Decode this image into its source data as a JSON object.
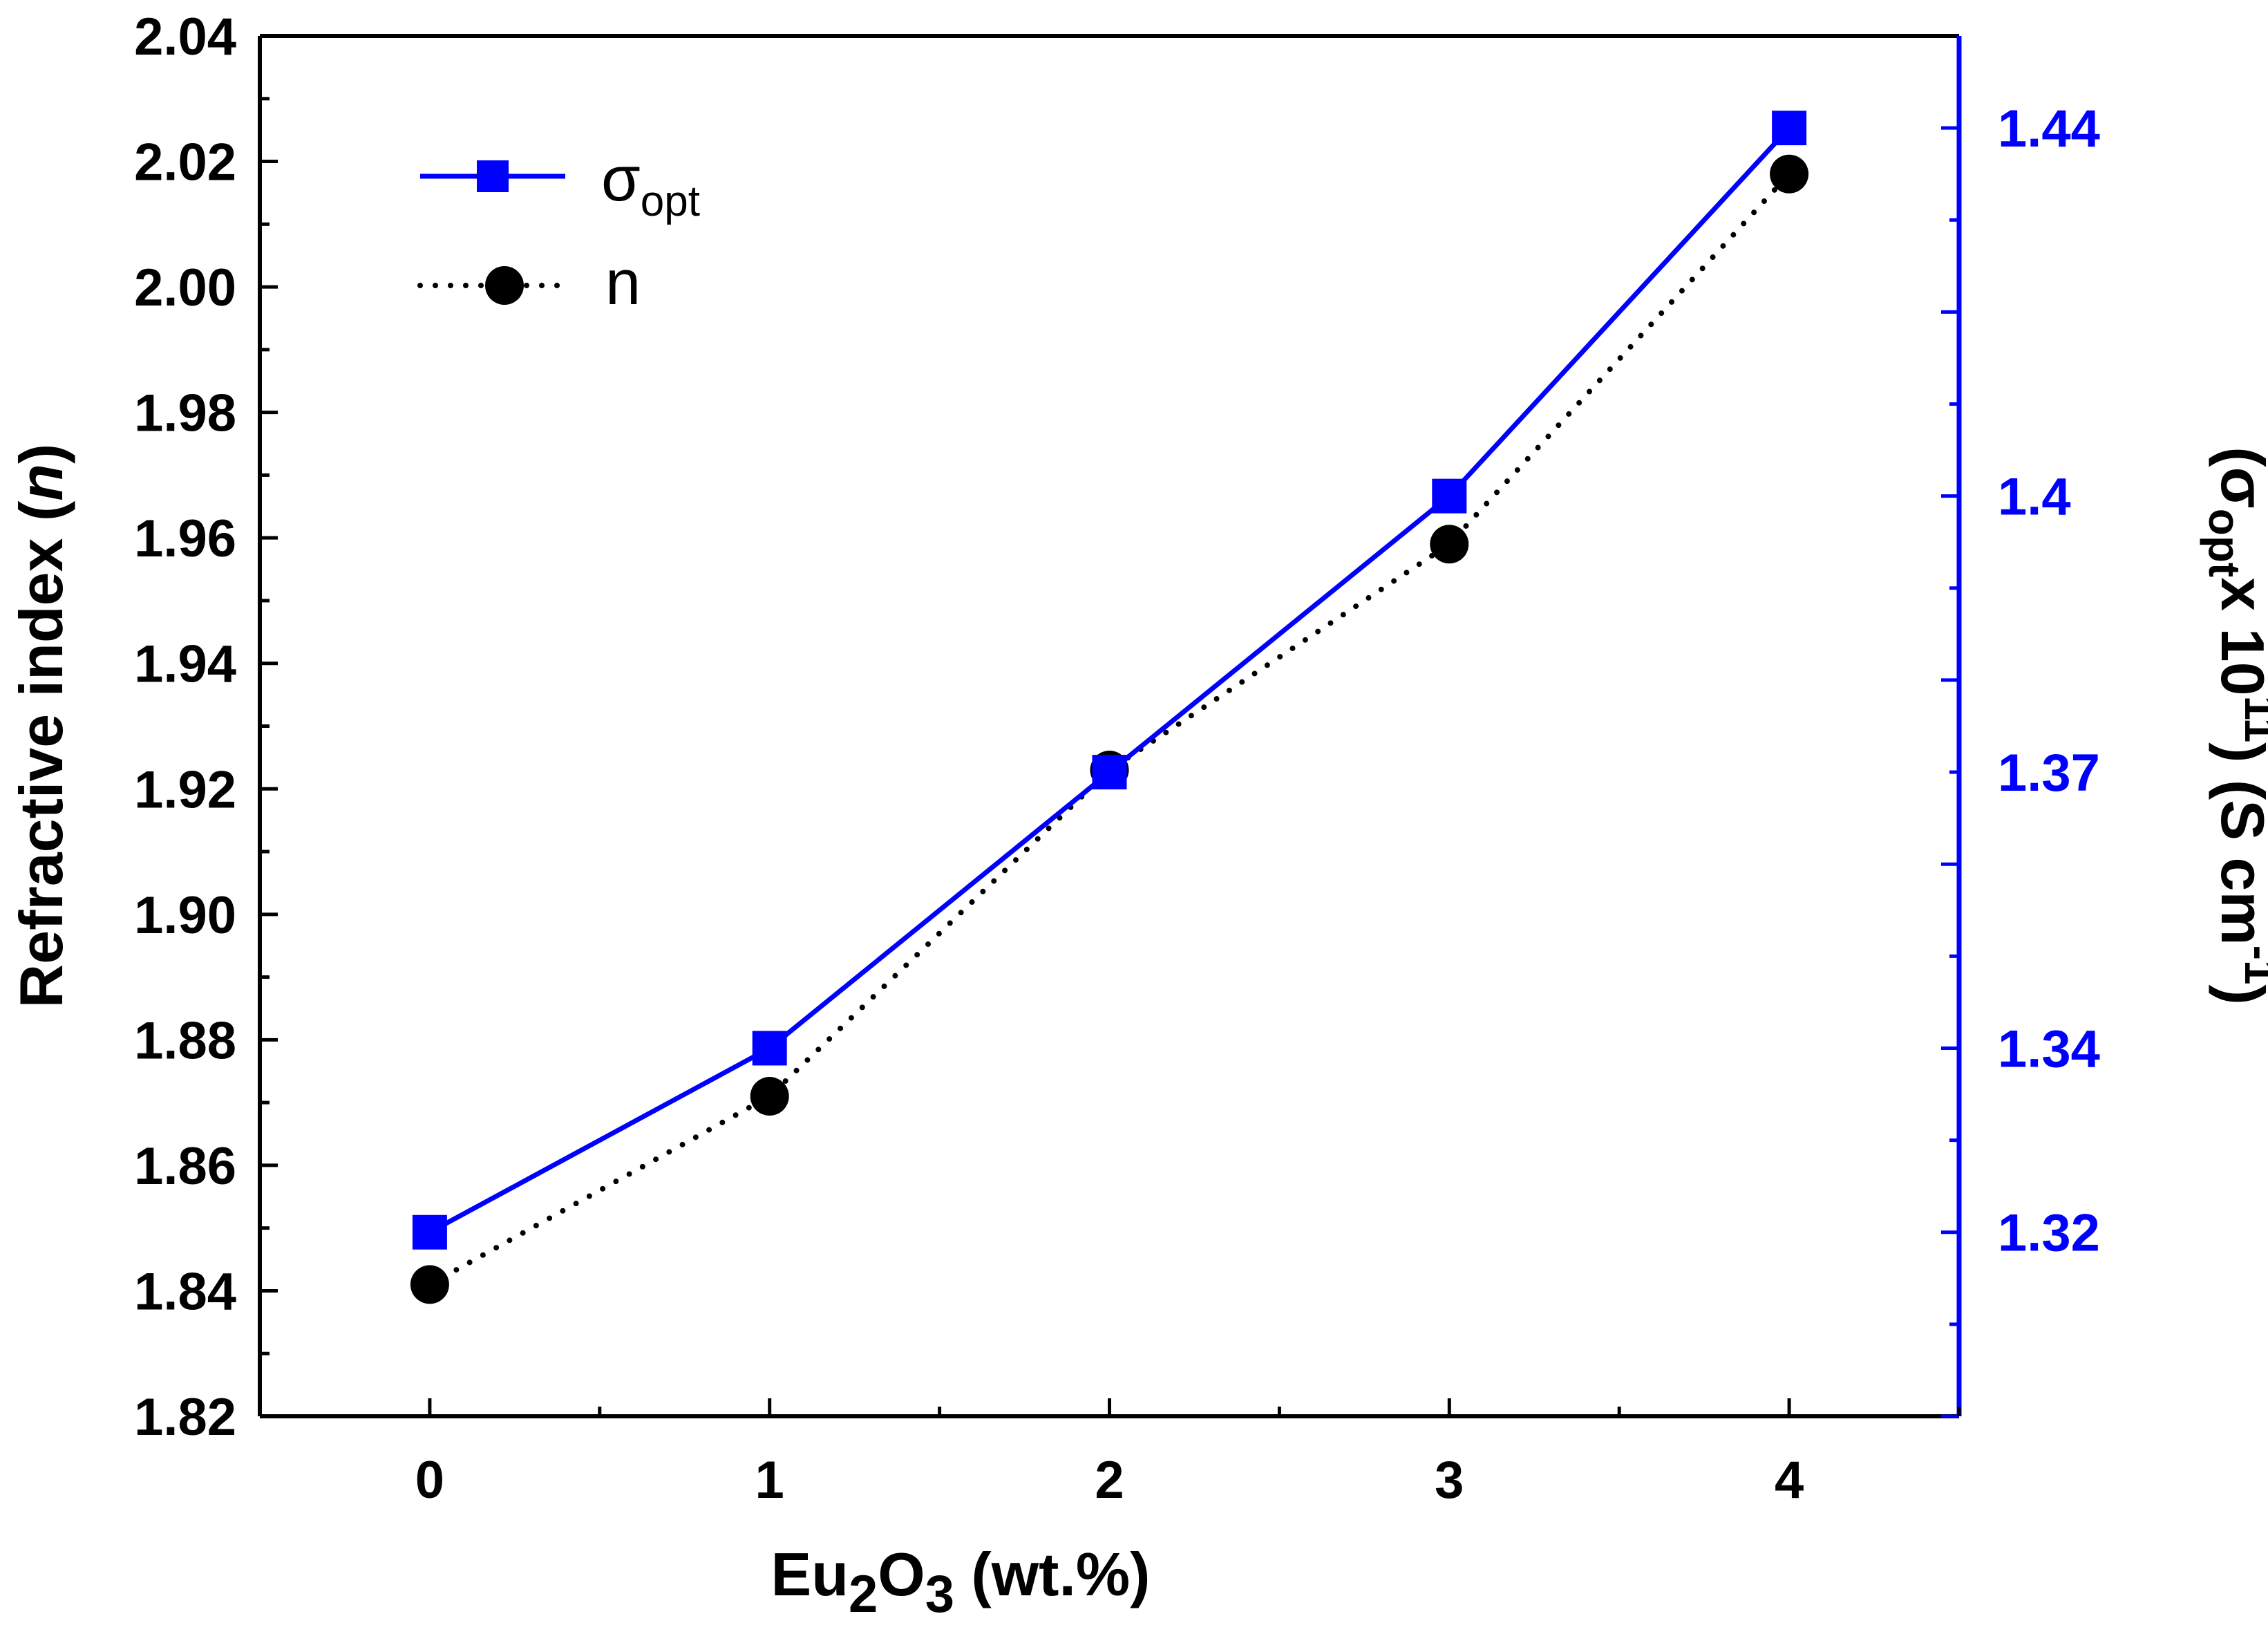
{
  "chart_data": {
    "type": "line",
    "x": [
      0,
      1,
      2,
      3,
      4
    ],
    "x_ticks": [
      "0",
      "1",
      "2",
      "3",
      "4"
    ],
    "xlim": [
      -0.5,
      4.5
    ],
    "xlabel": {
      "base": "Eu",
      "sub1": "2",
      "mid": "O",
      "sub2": "3",
      "tail": " (wt.%)"
    },
    "y_left": {
      "label": {
        "text": "Refractive index (",
        "italic": "n",
        "end": ")"
      },
      "ylim": [
        1.82,
        2.04
      ],
      "ticks": [
        "1.82",
        "1.84",
        "1.86",
        "1.88",
        "1.90",
        "1.92",
        "1.94",
        "1.96",
        "1.98",
        "2.00",
        "2.02",
        "2.04"
      ],
      "color": "#000000"
    },
    "y_right": {
      "label": {
        "open": "(σ",
        "sub": "opt",
        "mid": "x 10",
        "sup": "11",
        "unit": ") (S cm",
        "sup2": "-1",
        "close": ")"
      },
      "ylim": [
        1.3,
        1.45
      ],
      "ticks": [
        "1.32",
        "1.34",
        "1.37",
        "1.4",
        "1.44"
      ],
      "color": "#0000ff"
    },
    "series": [
      {
        "name": "σ",
        "name_sub": "opt",
        "axis": "right",
        "marker": "square",
        "line": "solid",
        "color": "#0000ff",
        "values": [
          1.32,
          1.34,
          1.37,
          1.4,
          1.44
        ]
      },
      {
        "name": "n",
        "axis": "left",
        "marker": "circle",
        "line": "dotted",
        "color": "#000000",
        "values": [
          1.841,
          1.871,
          1.923,
          1.959,
          2.018
        ]
      }
    ],
    "legend_position": "top-left",
    "grid": false
  }
}
